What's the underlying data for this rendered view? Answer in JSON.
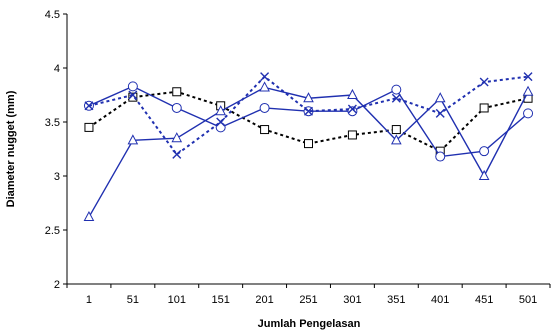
{
  "chart_data": {
    "type": "line",
    "title": "",
    "xlabel": "Jumlah Pengelasan",
    "ylabel": "Diameter nugget (mm)",
    "categories": [
      "1",
      "51",
      "101",
      "151",
      "201",
      "251",
      "301",
      "351",
      "401",
      "451",
      "501"
    ],
    "ylim": [
      2,
      4.5
    ],
    "yticks": [
      "2",
      "2.5",
      "3",
      "3.5",
      "4",
      "4.5"
    ],
    "grid": false,
    "legend": "none",
    "series": [
      {
        "marker": "square",
        "line_style": "dotted",
        "color": "#000000",
        "values": [
          3.45,
          3.73,
          3.78,
          3.65,
          3.43,
          3.3,
          3.38,
          3.43,
          3.23,
          3.63,
          3.72
        ]
      },
      {
        "marker": "circle",
        "line_style": "solid",
        "color": "#2030b0",
        "values": [
          3.65,
          3.83,
          3.63,
          3.45,
          3.63,
          3.6,
          3.6,
          3.8,
          3.18,
          3.23,
          3.58
        ]
      },
      {
        "marker": "cross",
        "line_style": "dotted",
        "color": "#2030b0",
        "values": [
          3.65,
          3.75,
          3.2,
          3.5,
          3.92,
          3.6,
          3.62,
          3.72,
          3.58,
          3.87,
          3.92
        ]
      },
      {
        "marker": "triangle",
        "line_style": "solid",
        "color": "#2030b0",
        "values": [
          2.62,
          3.33,
          3.35,
          3.6,
          3.82,
          3.72,
          3.75,
          3.33,
          3.72,
          3.0,
          3.78
        ]
      }
    ]
  }
}
